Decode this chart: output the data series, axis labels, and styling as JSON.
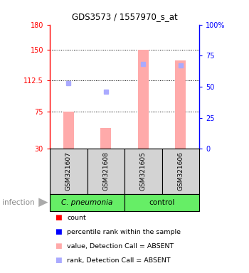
{
  "title": "GDS3573 / 1557970_s_at",
  "samples": [
    "GSM321607",
    "GSM321608",
    "GSM321605",
    "GSM321606"
  ],
  "group_label_1": "C. pneumonia",
  "group_label_2": "control",
  "bar_values": [
    75,
    55,
    150,
    137
  ],
  "rank_values": [
    53,
    46,
    68,
    67
  ],
  "ylim_left": [
    30,
    180
  ],
  "ylim_right": [
    0,
    100
  ],
  "left_ticks": [
    30,
    75,
    112.5,
    150,
    180
  ],
  "right_ticks": [
    0,
    25,
    50,
    75,
    100
  ],
  "bar_color_absent": "#ffaaaa",
  "rank_color_absent": "#aaaaff",
  "green_color": "#66ee66",
  "gray_color": "#d3d3d3",
  "infection_label": "infection",
  "legend_items": [
    {
      "color": "#ff0000",
      "label": "count"
    },
    {
      "color": "#0000ff",
      "label": "percentile rank within the sample"
    },
    {
      "color": "#ffaaaa",
      "label": "value, Detection Call = ABSENT"
    },
    {
      "color": "#aaaaff",
      "label": "rank, Detection Call = ABSENT"
    }
  ]
}
